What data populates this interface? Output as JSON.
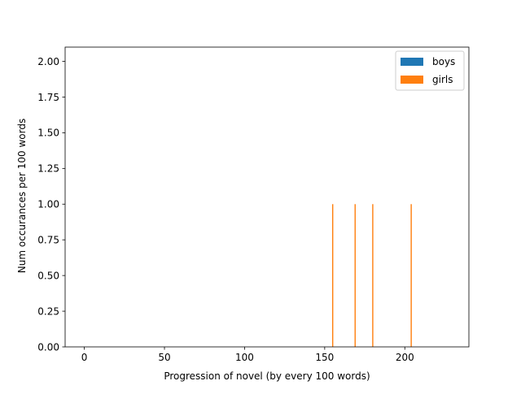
{
  "chart_data": {
    "type": "bar",
    "title": "",
    "xlabel": "Progression of novel (by every 100 words)",
    "ylabel": "Num occurances per 100 words",
    "xlim": [
      -12,
      240
    ],
    "ylim": [
      0,
      2.1
    ],
    "xticks": [
      0,
      50,
      100,
      150,
      200
    ],
    "xtick_labels": [
      "0",
      "50",
      "100",
      "150",
      "200"
    ],
    "yticks": [
      0,
      0.25,
      0.5,
      0.75,
      1.0,
      1.25,
      1.5,
      1.75,
      2.0
    ],
    "ytick_labels": [
      "0.00",
      "0.25",
      "0.50",
      "0.75",
      "1.00",
      "1.25",
      "1.50",
      "1.75",
      "2.00"
    ],
    "legend_position": "top-right",
    "grid": false,
    "series": [
      {
        "name": "boys",
        "color": "#1f77b4",
        "points": []
      },
      {
        "name": "girls",
        "color": "#ff7f0e",
        "points": [
          {
            "x": 155,
            "y": 1
          },
          {
            "x": 169,
            "y": 1
          },
          {
            "x": 180,
            "y": 1
          },
          {
            "x": 204,
            "y": 1
          }
        ]
      }
    ]
  }
}
